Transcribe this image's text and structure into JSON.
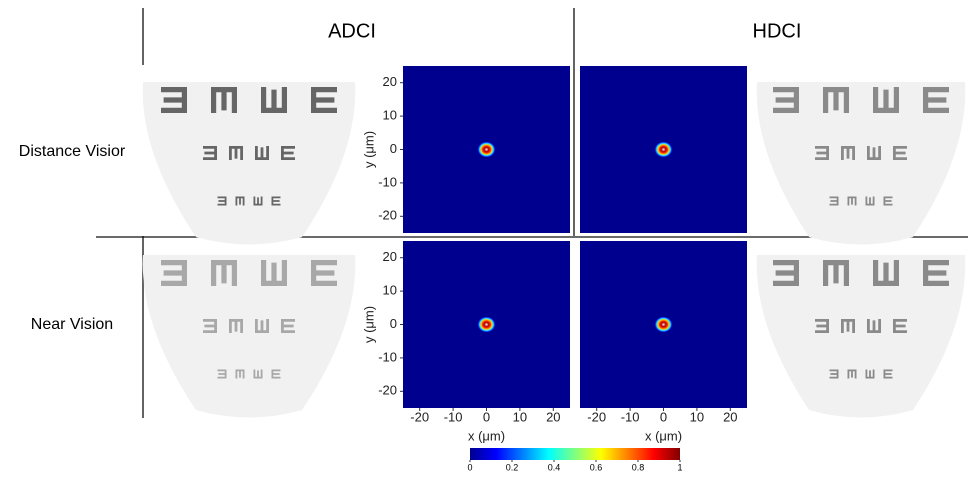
{
  "columns": [
    "ADCI",
    "HDCI"
  ],
  "rows": [
    "Distance Visior",
    "Near Vision"
  ],
  "axes": {
    "xlabel": "x (μm)",
    "ylabel": "y (μm)",
    "xlim": [
      -25,
      25
    ],
    "ylim": [
      -25,
      25
    ],
    "xticks": [
      -20,
      -10,
      0,
      10,
      20
    ],
    "yticks": [
      20,
      10,
      0,
      -10,
      -20
    ]
  },
  "colorbar": {
    "lim": [
      0,
      1
    ],
    "ticks": [
      0,
      0.2,
      0.4,
      0.6,
      0.8,
      1
    ]
  }
}
